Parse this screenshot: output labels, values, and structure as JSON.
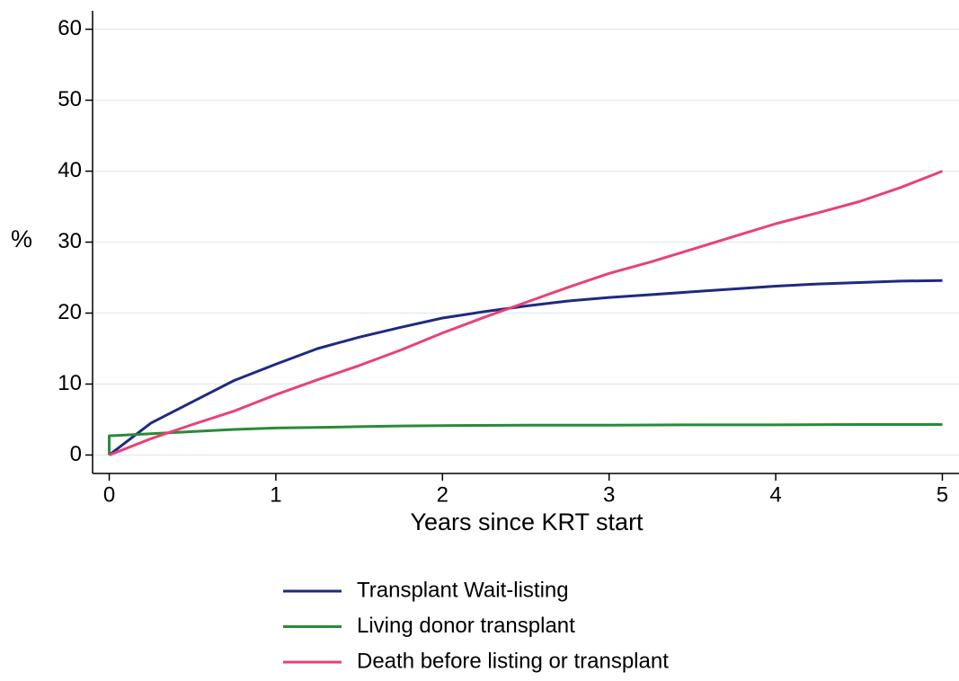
{
  "chart_data": {
    "type": "line",
    "xlabel": "Years since KRT start",
    "ylabel": "%",
    "xlim": [
      -0.1,
      5.1
    ],
    "ylim": [
      -2.6,
      62.6
    ],
    "xticks": [
      0,
      1,
      2,
      3,
      4,
      5
    ],
    "yticks": [
      0,
      10,
      20,
      30,
      40,
      50,
      60
    ],
    "grid": true,
    "legend": "bottom",
    "series": [
      {
        "name": "Transplant Wait-listing",
        "color": "#1f2a80",
        "x": [
          0,
          0.25,
          0.5,
          0.75,
          1,
          1.25,
          1.5,
          1.75,
          2,
          2.25,
          2.5,
          2.75,
          3,
          3.25,
          3.5,
          3.75,
          4,
          4.25,
          4.5,
          4.75,
          5
        ],
        "values": [
          0,
          4.5,
          7.5,
          10.5,
          12.8,
          15,
          16.6,
          18,
          19.3,
          20.2,
          21,
          21.7,
          22.2,
          22.6,
          23,
          23.4,
          23.8,
          24.1,
          24.3,
          24.5,
          24.6
        ]
      },
      {
        "name": "Living donor transplant",
        "color": "#2a8a3a",
        "x": [
          0,
          0,
          0.25,
          0.5,
          0.75,
          1,
          1.25,
          1.5,
          1.75,
          2,
          2.5,
          3,
          3.5,
          4,
          4.5,
          5
        ],
        "values": [
          0,
          2.7,
          3.0,
          3.3,
          3.6,
          3.8,
          3.9,
          4.0,
          4.1,
          4.15,
          4.2,
          4.2,
          4.25,
          4.25,
          4.3,
          4.3
        ]
      },
      {
        "name": "Death before listing or transplant",
        "color": "#e8417a",
        "x": [
          0,
          0.25,
          0.5,
          0.75,
          1,
          1.25,
          1.5,
          1.75,
          2,
          2.25,
          2.5,
          2.75,
          3,
          3.25,
          3.5,
          3.75,
          4,
          4.25,
          4.5,
          4.75,
          5
        ],
        "values": [
          0,
          2.3,
          4.3,
          6.2,
          8.5,
          10.6,
          12.6,
          14.8,
          17.2,
          19.4,
          21.5,
          23.6,
          25.6,
          27.2,
          29,
          30.8,
          32.6,
          34.1,
          35.7,
          37.7,
          40
        ]
      }
    ]
  }
}
